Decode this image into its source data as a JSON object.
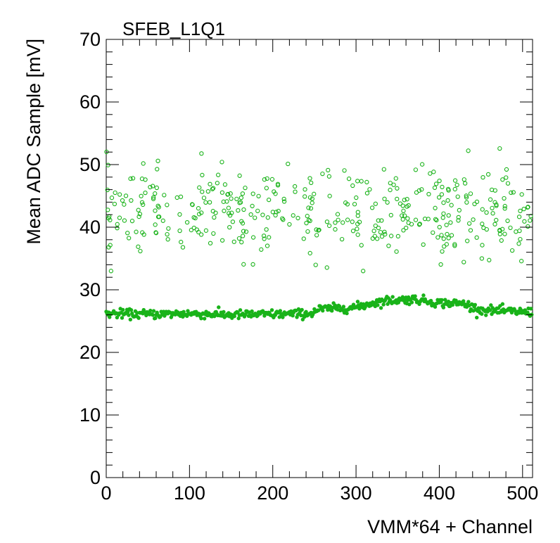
{
  "chart_data": {
    "type": "scatter",
    "title": "SFEB_L1Q1",
    "xlabel": "VMM*64 + Channel",
    "ylabel": "Mean ADC Sample [mV]",
    "xlim": [
      0,
      512
    ],
    "ylim": [
      0,
      70
    ],
    "x_ticks": [
      0,
      100,
      200,
      300,
      400,
      500
    ],
    "y_ticks": [
      0,
      10,
      20,
      30,
      40,
      50,
      60,
      70
    ],
    "grid": false,
    "legend": "none",
    "marker_color": "#19b319",
    "series": [
      {
        "marker": "filled-circle",
        "baseline_profile": [
          [
            0,
            26.2
          ],
          [
            50,
            26.1
          ],
          [
            100,
            26.2
          ],
          [
            150,
            26.0
          ],
          [
            200,
            26.1
          ],
          [
            245,
            26.2
          ],
          [
            256,
            26.9
          ],
          [
            300,
            27.2
          ],
          [
            320,
            27.9
          ],
          [
            340,
            28.3
          ],
          [
            370,
            28.5
          ],
          [
            400,
            27.9
          ],
          [
            430,
            27.8
          ],
          [
            448,
            26.8
          ],
          [
            511,
            26.4
          ]
        ],
        "point_count": 512
      },
      {
        "marker": "open-circle",
        "mean_value": 42.5,
        "value_range": [
          33,
          55
        ],
        "point_count": 400
      }
    ]
  }
}
